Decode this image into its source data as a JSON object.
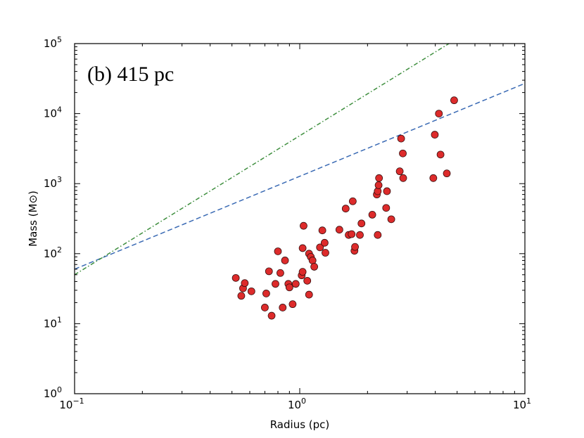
{
  "chart_data": {
    "type": "scatter",
    "annotation": "(b) 415 pc",
    "xlabel": "Radius (pc)",
    "ylabel": "Mass (M⊙)",
    "xscale": "log",
    "yscale": "log",
    "xlim": [
      0.1,
      10
    ],
    "ylim": [
      1,
      100000
    ],
    "x_ticks": [
      {
        "value": 0.1,
        "base": "10",
        "exp": "−1"
      },
      {
        "value": 1,
        "base": "10",
        "exp": "0"
      },
      {
        "value": 10,
        "base": "10",
        "exp": "1"
      }
    ],
    "y_ticks": [
      {
        "value": 1,
        "base": "10",
        "exp": "0"
      },
      {
        "value": 10,
        "base": "10",
        "exp": "1"
      },
      {
        "value": 100,
        "base": "10",
        "exp": "2"
      },
      {
        "value": 1000,
        "base": "10",
        "exp": "3"
      },
      {
        "value": 10000,
        "base": "10",
        "exp": "4"
      },
      {
        "value": 100000,
        "base": "10",
        "exp": "5"
      }
    ],
    "lines": [
      {
        "name": "dashed-line",
        "style": "dashed",
        "color": "#3a6ab4",
        "points": [
          [
            0.1,
            60
          ],
          [
            10,
            27000
          ]
        ]
      },
      {
        "name": "dash-dot-line",
        "style": "dashdot",
        "color": "#3f8f3f",
        "points": [
          [
            0.1,
            50
          ],
          [
            4.6,
            100000
          ]
        ]
      }
    ],
    "points": [
      {
        "x": 0.52,
        "y": 45
      },
      {
        "x": 0.55,
        "y": 25
      },
      {
        "x": 0.56,
        "y": 32
      },
      {
        "x": 0.57,
        "y": 38
      },
      {
        "x": 0.61,
        "y": 29
      },
      {
        "x": 0.7,
        "y": 17
      },
      {
        "x": 0.71,
        "y": 27
      },
      {
        "x": 0.73,
        "y": 56
      },
      {
        "x": 0.75,
        "y": 13
      },
      {
        "x": 0.78,
        "y": 37
      },
      {
        "x": 0.8,
        "y": 108
      },
      {
        "x": 0.82,
        "y": 53
      },
      {
        "x": 0.84,
        "y": 17
      },
      {
        "x": 0.86,
        "y": 80
      },
      {
        "x": 0.89,
        "y": 37
      },
      {
        "x": 0.9,
        "y": 33
      },
      {
        "x": 0.93,
        "y": 19
      },
      {
        "x": 0.96,
        "y": 37
      },
      {
        "x": 1.02,
        "y": 49
      },
      {
        "x": 1.03,
        "y": 55
      },
      {
        "x": 1.03,
        "y": 120
      },
      {
        "x": 1.04,
        "y": 250
      },
      {
        "x": 1.08,
        "y": 41
      },
      {
        "x": 1.1,
        "y": 26
      },
      {
        "x": 1.1,
        "y": 100
      },
      {
        "x": 1.12,
        "y": 90
      },
      {
        "x": 1.14,
        "y": 80
      },
      {
        "x": 1.16,
        "y": 65
      },
      {
        "x": 1.23,
        "y": 123
      },
      {
        "x": 1.26,
        "y": 215
      },
      {
        "x": 1.29,
        "y": 143
      },
      {
        "x": 1.3,
        "y": 103
      },
      {
        "x": 1.5,
        "y": 220
      },
      {
        "x": 1.6,
        "y": 440
      },
      {
        "x": 1.65,
        "y": 185
      },
      {
        "x": 1.7,
        "y": 190
      },
      {
        "x": 1.72,
        "y": 560
      },
      {
        "x": 1.75,
        "y": 110
      },
      {
        "x": 1.76,
        "y": 125
      },
      {
        "x": 1.85,
        "y": 185
      },
      {
        "x": 1.88,
        "y": 270
      },
      {
        "x": 2.1,
        "y": 360
      },
      {
        "x": 2.2,
        "y": 700
      },
      {
        "x": 2.22,
        "y": 185
      },
      {
        "x": 2.22,
        "y": 780
      },
      {
        "x": 2.24,
        "y": 950
      },
      {
        "x": 2.25,
        "y": 1200
      },
      {
        "x": 2.42,
        "y": 450
      },
      {
        "x": 2.44,
        "y": 780
      },
      {
        "x": 2.55,
        "y": 310
      },
      {
        "x": 2.78,
        "y": 1500
      },
      {
        "x": 2.82,
        "y": 4400
      },
      {
        "x": 2.87,
        "y": 2700
      },
      {
        "x": 2.88,
        "y": 1200
      },
      {
        "x": 3.92,
        "y": 1200
      },
      {
        "x": 3.98,
        "y": 5000
      },
      {
        "x": 4.15,
        "y": 10000
      },
      {
        "x": 4.22,
        "y": 2600
      },
      {
        "x": 4.5,
        "y": 1400
      },
      {
        "x": 4.85,
        "y": 15500
      }
    ],
    "point_color": "#dd2b2b",
    "point_edge_color": "#3a1010",
    "grid": false,
    "legend": "none"
  }
}
